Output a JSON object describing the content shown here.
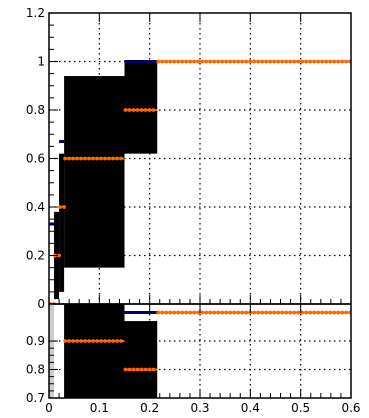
{
  "chart_data": [
    {
      "type": "line",
      "panel": "upper",
      "xlim": [
        0,
        0.6
      ],
      "ylim": [
        0,
        1.2
      ],
      "grid": true,
      "x_ticks": [
        "0",
        "0.1",
        "0.2",
        "0.3",
        "0.4",
        "0.5",
        "0.6"
      ],
      "y_ticks": [
        "0",
        "0.2",
        "0.4",
        "0.6",
        "0.8",
        "1",
        "1.2"
      ],
      "x_tick_values": [
        0,
        0.1,
        0.2,
        0.3,
        0.4,
        0.5,
        0.6
      ],
      "y_tick_values": [
        0,
        0.2,
        0.4,
        0.6,
        0.8,
        1.0,
        1.2
      ],
      "series": [
        {
          "color": "#ff6600",
          "segments": [
            {
              "x": [
                0.0,
                0.01
              ],
              "y": 0.0
            },
            {
              "x": [
                0.01,
                0.02
              ],
              "y": 0.2
            },
            {
              "x": [
                0.02,
                0.03
              ],
              "y": 0.4
            },
            {
              "x": [
                0.03,
                0.15
              ],
              "y": 0.6
            },
            {
              "x": [
                0.15,
                0.215
              ],
              "y": 0.8
            },
            {
              "x": [
                0.215,
                0.6
              ],
              "y": 1.0
            }
          ]
        }
      ],
      "error_boxes": [
        {
          "x": [
            0.01,
            0.02
          ],
          "y": [
            0.02,
            0.38
          ],
          "color": "#000000"
        },
        {
          "x": [
            0.02,
            0.03
          ],
          "y": [
            0.05,
            0.62
          ],
          "color": "#000000"
        },
        {
          "x": [
            0.03,
            0.15
          ],
          "y": [
            0.15,
            0.94
          ],
          "color": "#000000"
        },
        {
          "x": [
            0.15,
            0.215
          ],
          "y": [
            0.62,
            1.0
          ],
          "color": "#000000"
        }
      ],
      "step_line": {
        "color": "#000066",
        "segments": [
          {
            "x": [
              0.0,
              0.01
            ],
            "y": 0.33
          },
          {
            "x": [
              0.02,
              0.03
            ],
            "y": 0.67
          },
          {
            "x": [
              0.15,
              0.215
            ],
            "y": 1.0
          }
        ]
      }
    },
    {
      "type": "line",
      "panel": "lower",
      "xlim": [
        0,
        0.6
      ],
      "ylim": [
        0.7,
        1.03
      ],
      "grid": true,
      "x_ticks": [
        "0",
        "0.1",
        "0.2",
        "0.3",
        "0.4",
        "0.5",
        "0.6"
      ],
      "y_ticks": [
        "0.7",
        "0.8",
        "0.9"
      ],
      "x_tick_values": [
        0,
        0.1,
        0.2,
        0.3,
        0.4,
        0.5,
        0.6
      ],
      "y_tick_values": [
        0.7,
        0.8,
        0.9
      ],
      "series": [
        {
          "color": "#ff6600",
          "segments": [
            {
              "x": [
                0.03,
                0.15
              ],
              "y": 0.9
            },
            {
              "x": [
                0.15,
                0.215
              ],
              "y": 0.8
            },
            {
              "x": [
                0.215,
                0.6
              ],
              "y": 1.0
            }
          ]
        }
      ],
      "error_boxes": [
        {
          "x": [
            0.0,
            0.01
          ],
          "y": [
            0.7,
            1.03
          ],
          "color": "#cccccc"
        },
        {
          "x": [
            0.03,
            0.15
          ],
          "y": [
            0.7,
            1.03
          ],
          "color": "#000000"
        },
        {
          "x": [
            0.15,
            0.215
          ],
          "y": [
            0.7,
            0.97
          ],
          "color": "#000000"
        }
      ],
      "step_line": {
        "color": "#000066",
        "segments": [
          {
            "x": [
              0.15,
              0.215
            ],
            "y": 1.0
          }
        ]
      }
    }
  ]
}
